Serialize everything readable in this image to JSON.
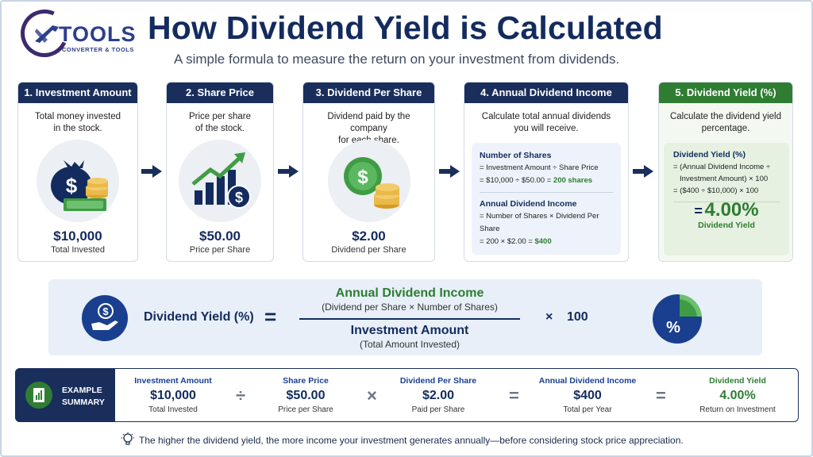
{
  "logo": {
    "brand": "TOOLS",
    "tagline": "CONVERTER & TOOLS"
  },
  "header": {
    "title": "How Dividend Yield is Calculated",
    "subtitle": "A simple formula to measure the return on your investment from dividends."
  },
  "steps": [
    {
      "header": "1. Investment Amount",
      "desc1": "Total money invested",
      "desc2": "in the stock.",
      "value": "$10,000",
      "label": "Total Invested",
      "icon": "money-bag-icon"
    },
    {
      "header": "2. Share Price",
      "desc1": "Price per share",
      "desc2": "of the stock.",
      "value": "$50.00",
      "label": "Price per Share",
      "icon": "growth-chart-icon"
    },
    {
      "header": "3. Dividend Per Share",
      "desc1": "Dividend paid by the company",
      "desc2": "for each share.",
      "value": "$2.00",
      "label": "Dividend per Share",
      "icon": "coins-icon"
    },
    {
      "header": "4. Annual Dividend Income",
      "desc1": "Calculate total annual dividends",
      "desc2": "you will receive."
    },
    {
      "header": "5. Dividend Yield (%)",
      "desc1": "Calculate the dividend yield",
      "desc2": "percentage."
    }
  ],
  "step4_calc": {
    "shares_title": "Number of Shares",
    "shares_line1": "= Investment Amount ÷ Share Price",
    "shares_line2": "= $10,000  ÷  $50.00 = ",
    "shares_result": "200 shares",
    "income_title": "Annual Dividend Income",
    "income_line1": "= Number of Shares × Dividend Per Share",
    "income_line2": "= 200 × $2.00 = ",
    "income_result": "$400"
  },
  "step5_calc": {
    "title": "Dividend Yield (%)",
    "line1": "= (Annual Dividend Income ÷",
    "line2": "Investment Amount) × 100",
    "line3": "= ($400 ÷ $10,000) × 100",
    "eq": "=",
    "result": "4.00%",
    "result_label": "Dividend Yield"
  },
  "formula": {
    "lhs": "Dividend Yield (%)",
    "equals": "=",
    "numerator": "Annual Dividend Income",
    "numerator_sub": "(Dividend per Share × Number of Shares)",
    "denominator": "Investment Amount",
    "denominator_sub": "(Total Amount Invested)",
    "times": "×",
    "multiplier": "100",
    "pie_symbol": "%"
  },
  "summary": {
    "label1": "EXAMPLE",
    "label2": "SUMMARY",
    "items": [
      {
        "title": "Investment Amount",
        "value": "$10,000",
        "sub": "Total Invested"
      },
      {
        "title": "Share Price",
        "value": "$50.00",
        "sub": "Price per Share"
      },
      {
        "title": "Dividend Per Share",
        "value": "$2.00",
        "sub": "Paid per Share"
      },
      {
        "title": "Annual Dividend Income",
        "value": "$400",
        "sub": "Total per Year"
      },
      {
        "title": "Dividend Yield",
        "value": "4.00%",
        "sub": "Return on Investment"
      }
    ],
    "ops": [
      "÷",
      "×",
      "=",
      "="
    ]
  },
  "footer": "The higher the dividend yield, the more income your investment generates annually—before considering stock price appreciation.",
  "colors": {
    "navy": "#1a2e5c",
    "green": "#2e7d32",
    "light_blue": "#e8eff8"
  }
}
